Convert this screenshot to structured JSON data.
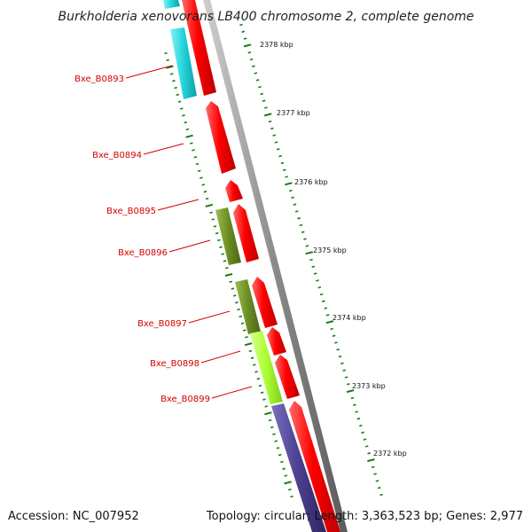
{
  "title": "Burkholderia xenovorans LB400 chromosome 2, complete genome",
  "footer": {
    "accession": "Accession: NC_007952",
    "summary": "Topology: circular; Length: 3,363,523 bp; Genes: 2,977"
  },
  "colors": {
    "strand_forward": "#ff0000",
    "cyan_feature": "#22d3d9",
    "olive_feature": "#6b8e23",
    "lime_feature": "#aaff33",
    "indigo_feature": "#4b3f8f",
    "backbone": "#8a8a8a",
    "tick": "#1a7a1a",
    "label": "#d40000"
  },
  "gene_labels": [
    "Bxe_B0893",
    "Bxe_B0894",
    "Bxe_B0895",
    "Bxe_B0896",
    "Bxe_B0897",
    "Bxe_B0898",
    "Bxe_B0899"
  ],
  "kbp_labels": [
    "2378 kbp",
    "2377 kbp",
    "2376 kbp",
    "2375 kbp",
    "2374 kbp",
    "2373 kbp",
    "2372 kbp"
  ]
}
